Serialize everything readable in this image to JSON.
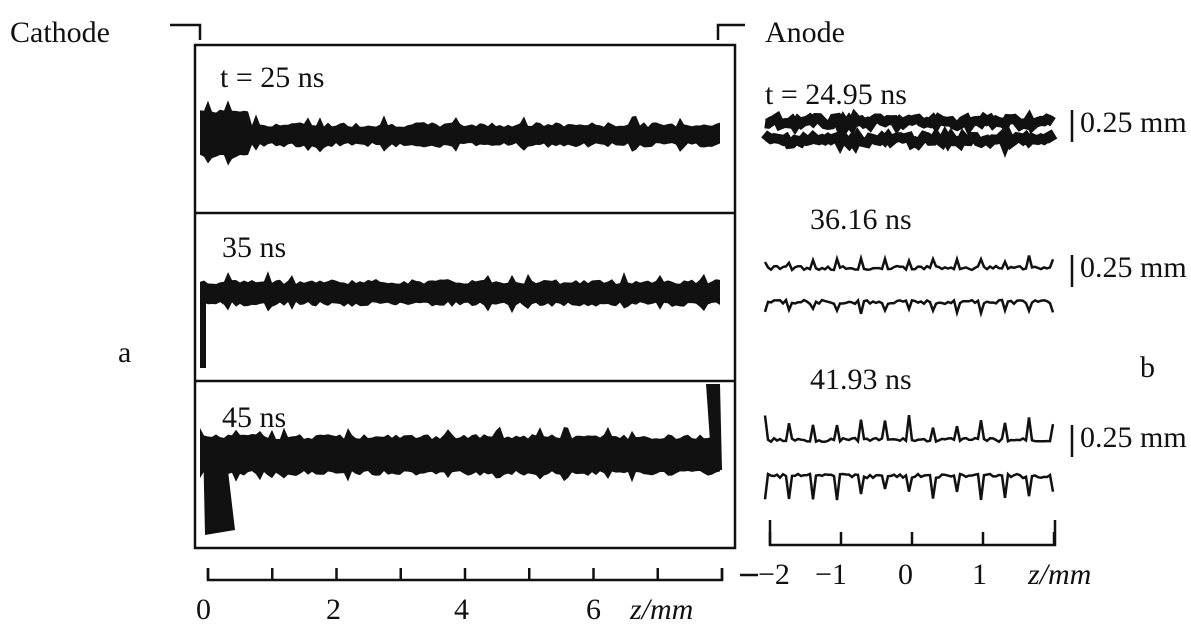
{
  "labels": {
    "cathode": "Cathode",
    "anode": "Anode",
    "panel_a": "a",
    "panel_b": "b"
  },
  "panel_a": {
    "frames": [
      {
        "time": "t = 25 ns"
      },
      {
        "time": "35 ns"
      },
      {
        "time": "45 ns"
      }
    ],
    "axis": {
      "ticks": [
        "0",
        "2",
        "4",
        "6"
      ],
      "unit": "z/mm"
    }
  },
  "panel_b": {
    "frames": [
      {
        "time": "t = 24.95 ns",
        "scale": "0.25 mm"
      },
      {
        "time": "36.16 ns",
        "scale": "0.25 mm"
      },
      {
        "time": "41.93 ns",
        "scale": "0.25 mm"
      }
    ],
    "axis": {
      "ticks": [
        "−2",
        "−1",
        "0",
        "1"
      ],
      "unit": "z/mm"
    }
  }
}
